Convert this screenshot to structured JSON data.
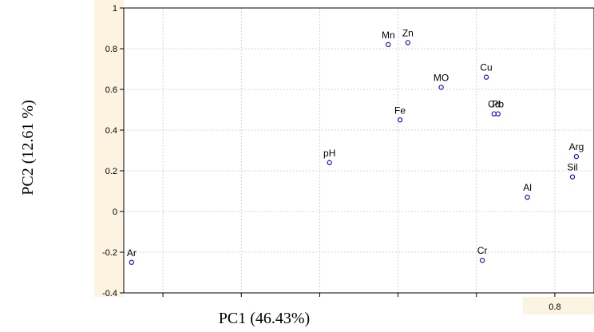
{
  "chart_data": {
    "type": "scatter",
    "title": "",
    "xlabel": "PC1 (46.43%)",
    "ylabel": "PC2 (12.61 %)",
    "xlim": [
      -0.3,
      0.9
    ],
    "ylim": [
      -0.4,
      1.0
    ],
    "yticks": [
      -0.4,
      -0.2,
      0,
      0.2,
      0.4,
      0.6,
      0.8,
      1
    ],
    "ytick_labels": [
      "-0.4",
      "-0.2",
      "0",
      "0.2",
      "0.4",
      "0.6",
      "0.8",
      "1"
    ],
    "xtick_labels_visible": [
      "0.8"
    ],
    "grid": true,
    "marker_color": "#0000cc",
    "band_color": "#fdf3e1",
    "points": [
      {
        "label": "Mn",
        "x": 0.375,
        "y": 0.82
      },
      {
        "label": "Zn",
        "x": 0.425,
        "y": 0.83
      },
      {
        "label": "Cu",
        "x": 0.625,
        "y": 0.66
      },
      {
        "label": "MO",
        "x": 0.51,
        "y": 0.61
      },
      {
        "label": "Cd",
        "x": 0.645,
        "y": 0.48
      },
      {
        "label": "Pb",
        "x": 0.655,
        "y": 0.48
      },
      {
        "label": "Fe",
        "x": 0.405,
        "y": 0.45
      },
      {
        "label": "Arg",
        "x": 0.855,
        "y": 0.27
      },
      {
        "label": "pH",
        "x": 0.225,
        "y": 0.24
      },
      {
        "label": "Sil",
        "x": 0.845,
        "y": 0.17
      },
      {
        "label": "Al",
        "x": 0.73,
        "y": 0.07
      },
      {
        "label": "Cr",
        "x": 0.615,
        "y": -0.24
      },
      {
        "label": "Ar",
        "x": -0.28,
        "y": -0.25
      }
    ]
  }
}
